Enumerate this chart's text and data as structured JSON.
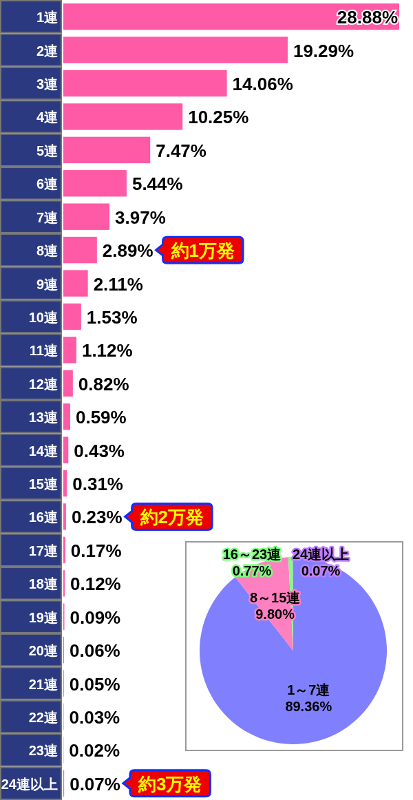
{
  "chart_data": [
    {
      "type": "bar",
      "orientation": "horizontal",
      "color": "#ff5aa5",
      "categories": [
        "1連",
        "2連",
        "3連",
        "4連",
        "5連",
        "6連",
        "7連",
        "8連",
        "9連",
        "10連",
        "11連",
        "12連",
        "13連",
        "14連",
        "15連",
        "16連",
        "17連",
        "18連",
        "19連",
        "20連",
        "21連",
        "22連",
        "23連",
        "24連以上"
      ],
      "values": [
        28.88,
        19.29,
        14.06,
        10.25,
        7.47,
        5.44,
        3.97,
        2.89,
        2.11,
        1.53,
        1.12,
        0.82,
        0.59,
        0.43,
        0.31,
        0.23,
        0.17,
        0.12,
        0.09,
        0.06,
        0.05,
        0.03,
        0.02,
        0.07
      ],
      "value_labels": [
        "28.88%",
        "19.29%",
        "14.06%",
        "10.25%",
        "7.47%",
        "5.44%",
        "3.97%",
        "2.89%",
        "2.11%",
        "1.53%",
        "1.12%",
        "0.82%",
        "0.59%",
        "0.43%",
        "0.31%",
        "0.23%",
        "0.17%",
        "0.12%",
        "0.09%",
        "0.06%",
        "0.05%",
        "0.03%",
        "0.02%",
        "0.07%"
      ],
      "annotations": [
        "約1万発",
        "約2万発",
        "約3万発"
      ]
    },
    {
      "type": "pie",
      "categories": [
        "1～7連",
        "8～15連",
        "16～23連",
        "24連以上"
      ],
      "values": [
        89.36,
        9.8,
        0.77,
        0.07
      ],
      "colors": [
        "#8080ff",
        "#ff80c0",
        "#80ff80",
        "#c080ff"
      ],
      "value_labels": [
        "89.36%",
        "9.80%",
        "0.77%",
        "0.07%"
      ]
    }
  ]
}
